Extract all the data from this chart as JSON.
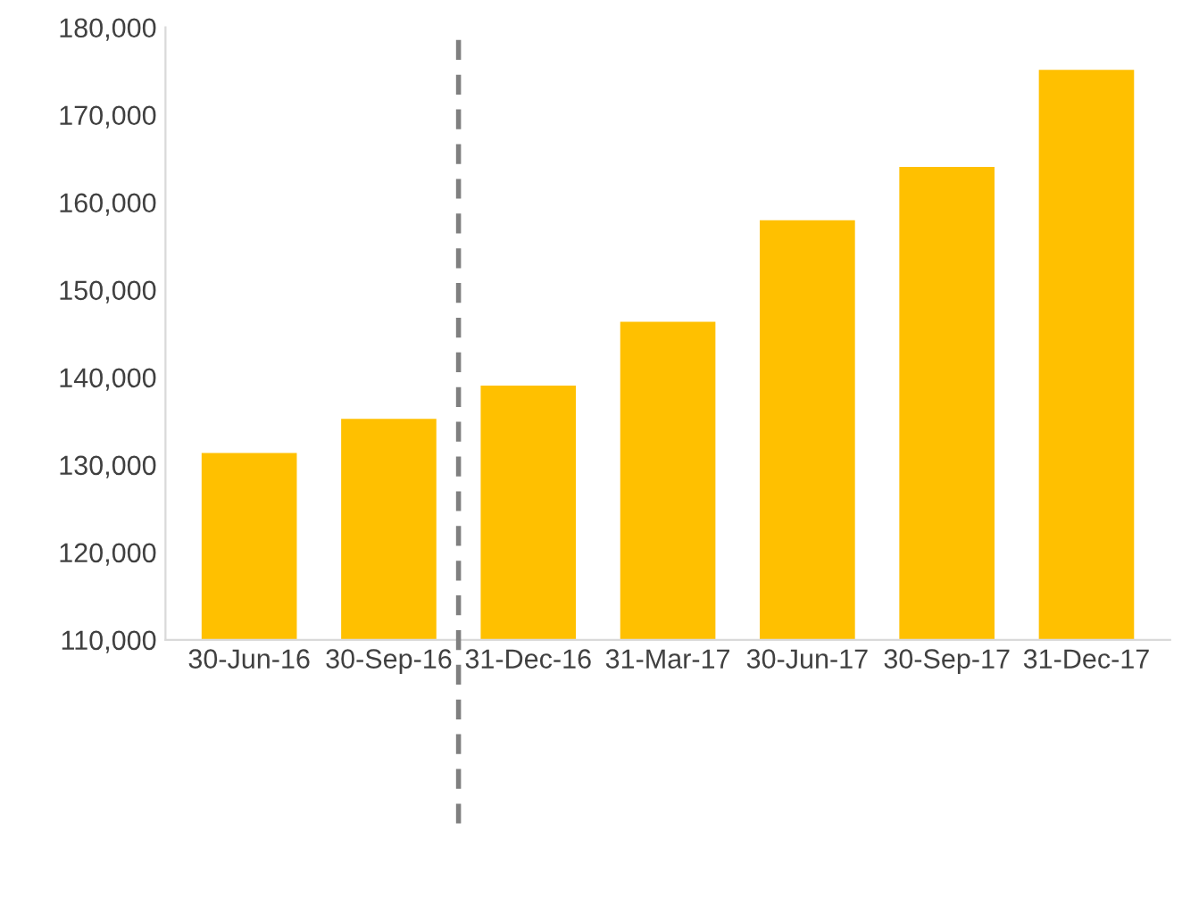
{
  "chart_data": {
    "type": "bar",
    "categories": [
      "30-Jun-16",
      "30-Sep-16",
      "31-Dec-16",
      "31-Mar-17",
      "30-Jun-17",
      "30-Sep-17",
      "31-Dec-17"
    ],
    "values": [
      131500,
      135400,
      139200,
      146500,
      158100,
      164200,
      175300
    ],
    "color": "#ffc000",
    "ylim": [
      110000,
      180000
    ],
    "yticks": [
      {
        "value": 110000,
        "label": "110,000"
      },
      {
        "value": 120000,
        "label": "120,000"
      },
      {
        "value": 130000,
        "label": "130,000"
      },
      {
        "value": 140000,
        "label": "140,000"
      },
      {
        "value": 150000,
        "label": "150,000"
      },
      {
        "value": 160000,
        "label": "160,000"
      },
      {
        "value": 170000,
        "label": "170,000"
      },
      {
        "value": 180000,
        "label": "180,000"
      }
    ],
    "grid": false
  }
}
